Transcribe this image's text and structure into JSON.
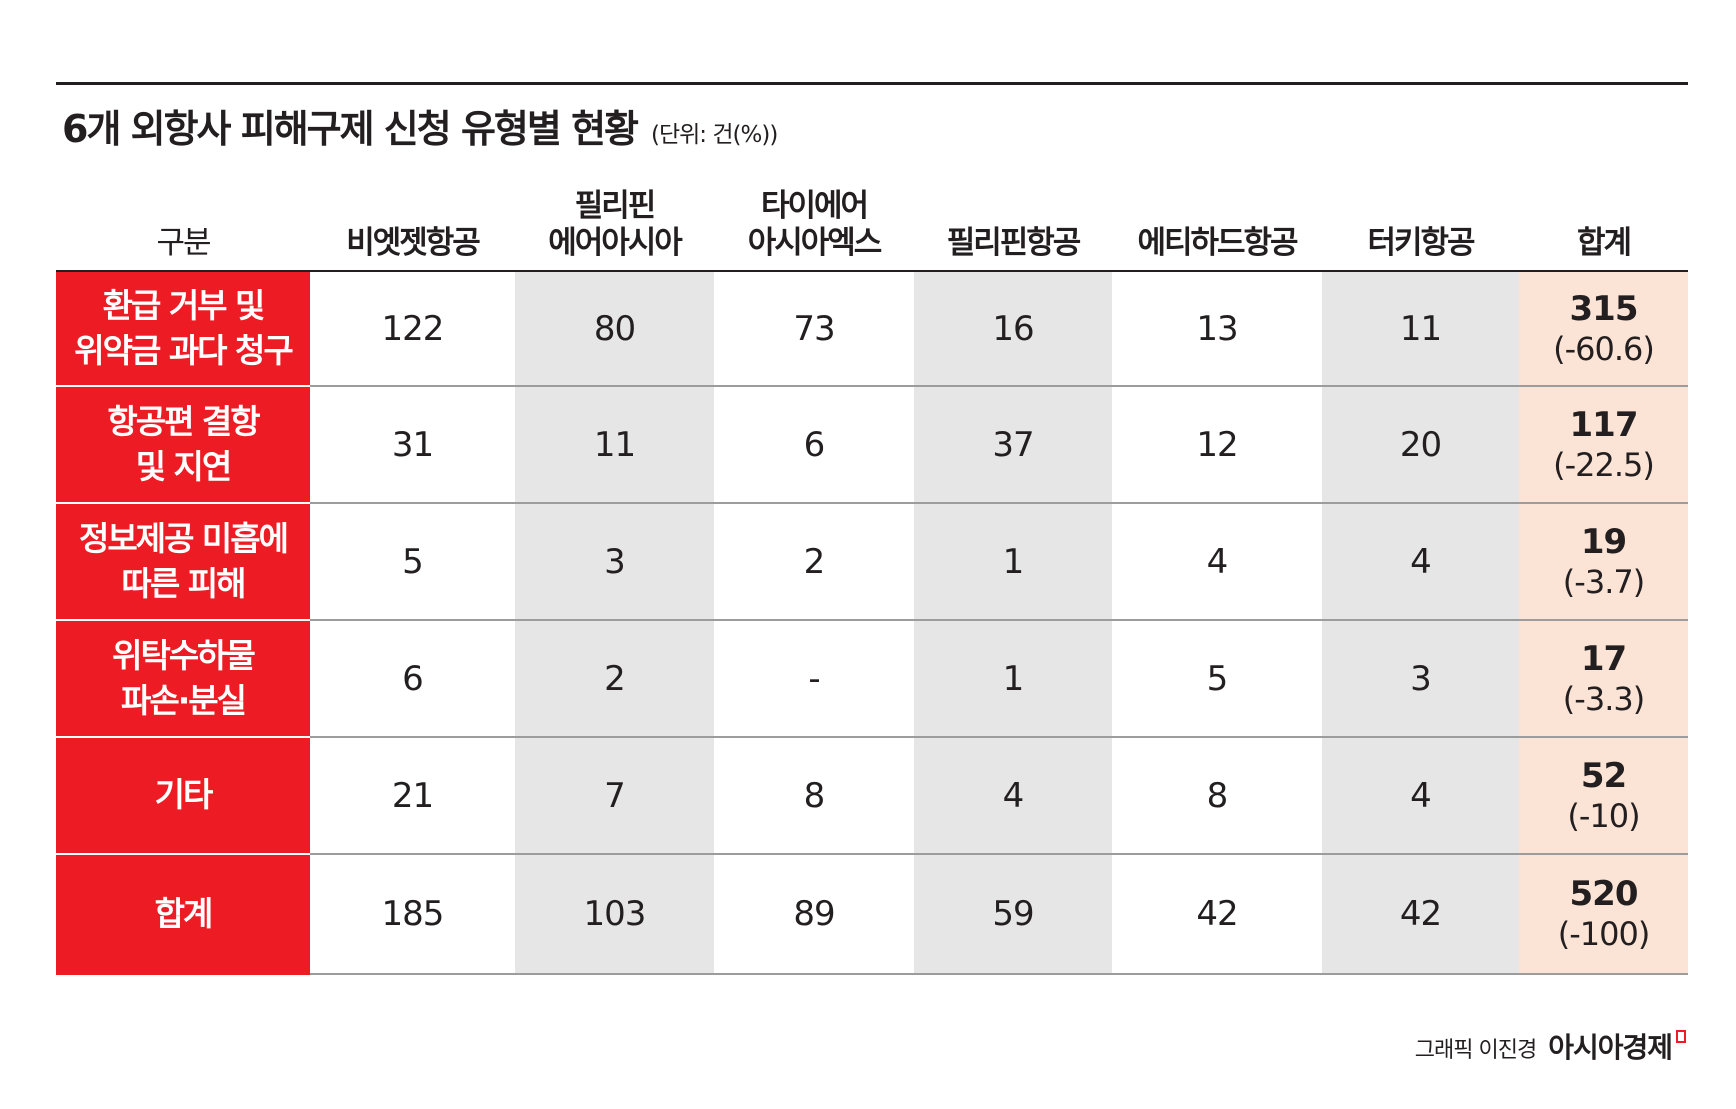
{
  "title": "6개 외항사 피해구제 신청 유형별 현황",
  "unit": "(단위: 건(%))",
  "credit": "그래픽 이진경",
  "brand": "아시아경제",
  "colors": {
    "accent_red": "#ed1c24",
    "shade_gray": "#e6e6e7",
    "total_peach": "#fbe4d5"
  },
  "chart_data": {
    "type": "table",
    "title": "6개 외항사 피해구제 신청 유형별 현황",
    "unit": "(단위: 건(%))",
    "corner_label": "구분",
    "columns": [
      "비엣젯항공",
      "필리핀\n에어아시아",
      "타이에어\n아시아엑스",
      "필리핀항공",
      "에티하드항공",
      "터키항공",
      "합계"
    ],
    "rows": [
      {
        "label": "환급 거부 및\n위약금 과다 청구",
        "values": [
          "122",
          "80",
          "73",
          "16",
          "13",
          "11"
        ],
        "total": "315",
        "total_pct": "(-60.6)"
      },
      {
        "label": "항공편 결항\n및 지연",
        "values": [
          "31",
          "11",
          "6",
          "37",
          "12",
          "20"
        ],
        "total": "117",
        "total_pct": "(-22.5)"
      },
      {
        "label": "정보제공 미흡에\n따른 피해",
        "values": [
          "5",
          "3",
          "2",
          "1",
          "4",
          "4"
        ],
        "total": "19",
        "total_pct": "(-3.7)"
      },
      {
        "label": "위탁수하물\n파손·분실",
        "values": [
          "6",
          "2",
          "-",
          "1",
          "5",
          "3"
        ],
        "total": "17",
        "total_pct": "(-3.3)"
      },
      {
        "label": "기타",
        "values": [
          "21",
          "7",
          "8",
          "4",
          "8",
          "4"
        ],
        "total": "52",
        "total_pct": "(-10)"
      },
      {
        "label": "합계",
        "values": [
          "185",
          "103",
          "89",
          "59",
          "42",
          "42"
        ],
        "total": "520",
        "total_pct": "(-100)"
      }
    ]
  }
}
